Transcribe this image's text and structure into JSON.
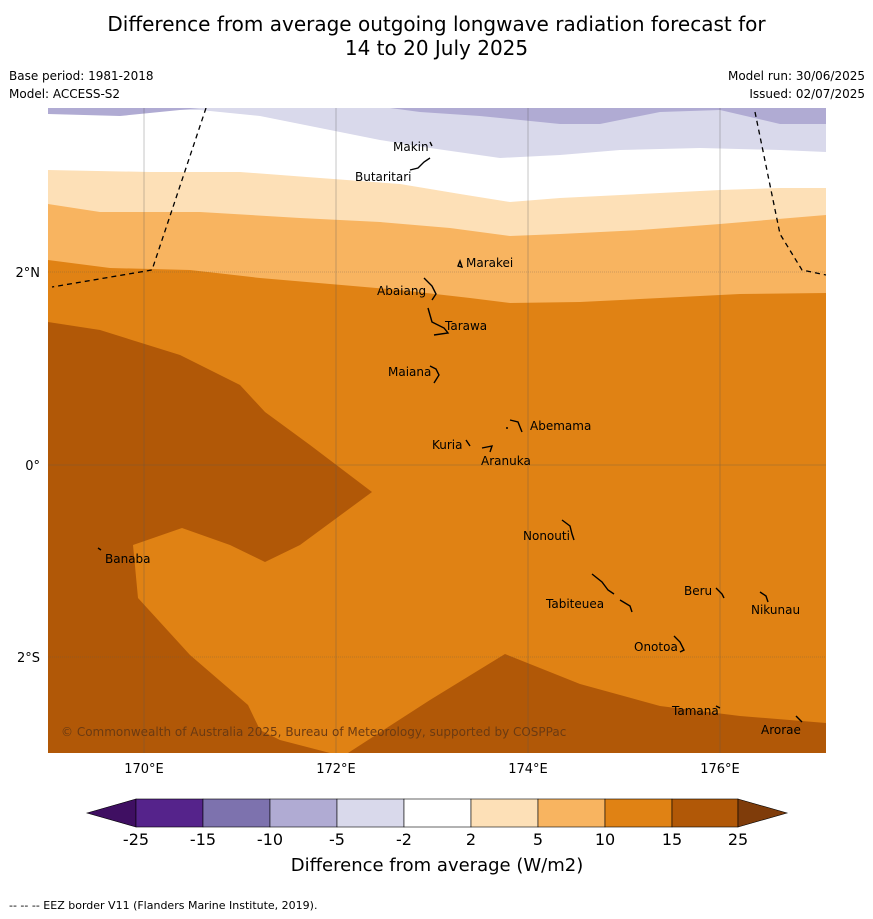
{
  "title_line1": "Difference from average outgoing longwave radiation forecast for",
  "title_line2": "14 to 20 July 2025",
  "base_period": "Base period: 1981-2018",
  "model": "Model: ACCESS-S2",
  "model_run": "Model run: 30/06/2025",
  "issued": "Issued: 02/07/2025",
  "lat_labels": [
    "2°N",
    "0°",
    "2°S"
  ],
  "lon_labels": [
    "170°E",
    "172°E",
    "174°E",
    "176°E"
  ],
  "places": [
    "Makin",
    "Butaritari",
    "Marakei",
    "Abaiang",
    "Tarawa",
    "Maiana",
    "Abemama",
    "Kuria",
    "Aranuka",
    "Nonouti",
    "Banaba",
    "Beru",
    "Nikunau",
    "Tabiteuea",
    "Onotoa",
    "Tamana",
    "Arorae"
  ],
  "copyright": "© Commonwealth of Australia 2025, Bureau of Meteorology, supported by COSPPac",
  "legend": {
    "title": "Difference from average (W/m2)",
    "ticks": [
      "-25",
      "-15",
      "-10",
      "-5",
      "-2",
      "2",
      "5",
      "10",
      "15",
      "25"
    ],
    "colors": [
      "#3f0f62",
      "#55238b",
      "#7d72ae",
      "#b0abd3",
      "#d9d9eb",
      "#ffffff",
      "#fde0b7",
      "#f8b460",
      "#e08214",
      "#b15807",
      "#7f3c0a"
    ]
  },
  "footer": "-- -- -- EEZ border V11 (Flanders Marine Institute, 2019)."
}
